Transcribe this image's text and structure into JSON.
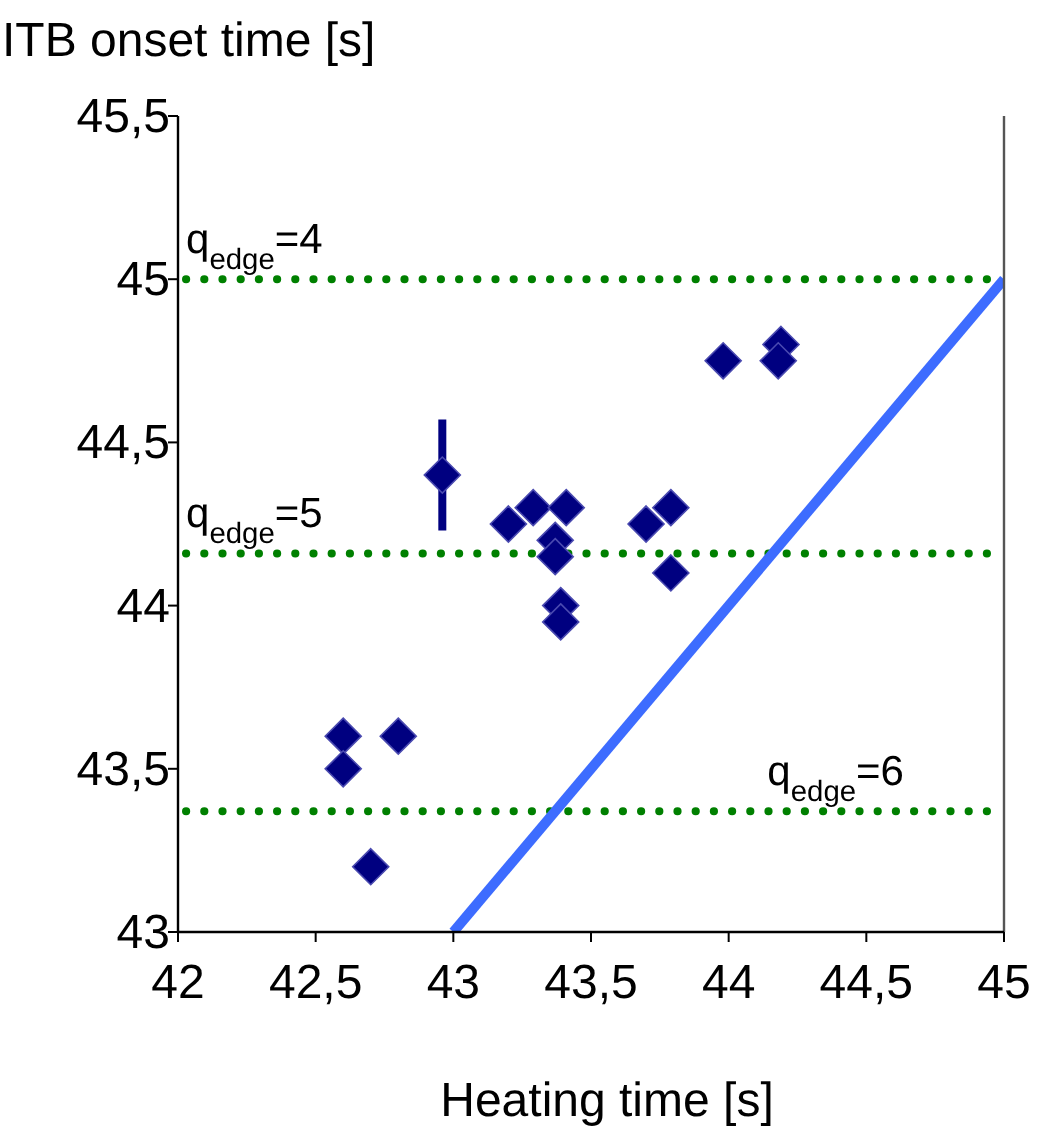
{
  "chart_data": {
    "type": "scatter",
    "xlabel": "Heating time [s]",
    "ylabel": "ITB onset time [s]",
    "xlim": [
      42,
      45
    ],
    "ylim": [
      43,
      45.5
    ],
    "xticks": [
      42,
      {
        "value": 42.5,
        "label": "42,5"
      },
      43,
      {
        "value": 43.5,
        "label": "43,5"
      },
      44,
      {
        "value": 44.5,
        "label": "44,5"
      },
      45
    ],
    "yticks": [
      43,
      {
        "value": 43.5,
        "label": "43,5"
      },
      44,
      {
        "value": 44.5,
        "label": "44,5"
      },
      45,
      {
        "value": 45.5,
        "label": "45,5"
      }
    ],
    "grid": false,
    "marker": "diamond",
    "series": [
      {
        "color": "#000080",
        "x": [
          42.96,
          43.98,
          44.19,
          44.18,
          43.2,
          43.29,
          43.41,
          43.37,
          43.37,
          43.39,
          43.39,
          43.7,
          43.79,
          43.79,
          42.6,
          42.6,
          42.8,
          42.7
        ],
        "values": [
          44.4,
          44.75,
          44.8,
          44.75,
          44.25,
          44.3,
          44.3,
          44.2,
          44.15,
          44.0,
          43.95,
          44.25,
          44.3,
          44.1,
          43.6,
          43.5,
          43.6,
          43.2
        ],
        "errors": [
          0.17,
          null,
          null,
          null,
          null,
          null,
          null,
          null,
          null,
          null,
          null,
          null,
          null,
          null,
          null,
          null,
          null,
          null
        ]
      },
      {
        "type": "line",
        "color": "#3d6cff",
        "marker": "none",
        "x": [
          43,
          45
        ],
        "values": [
          43,
          45
        ]
      }
    ],
    "ref_lines": [
      {
        "axis": "y",
        "value": 45.0,
        "color": "#008000",
        "line_style": "dotted"
      },
      {
        "axis": "y",
        "value": 44.16,
        "color": "#008000",
        "line_style": "dotted"
      },
      {
        "axis": "y",
        "value": 43.37,
        "color": "#008000",
        "line_style": "dotted"
      }
    ],
    "annotations": [
      "q$_{edge}$=4",
      "q$_{edge}$=5",
      "q$_{edge}$=6"
    ]
  }
}
